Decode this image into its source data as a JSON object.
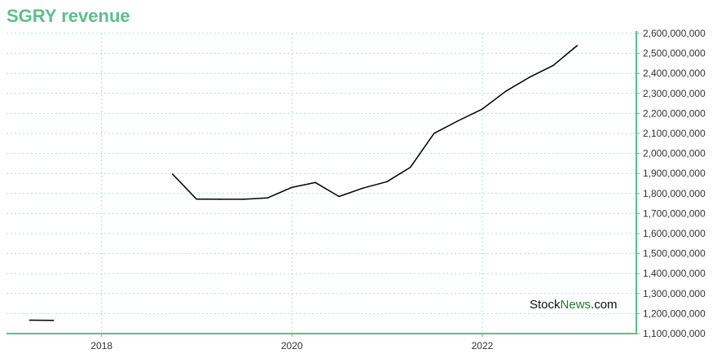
{
  "chart_data": {
    "type": "line",
    "title": "SGRY revenue",
    "xlabel": "",
    "ylabel": "",
    "x_ticks": [
      "2018",
      "2020",
      "2022"
    ],
    "y_ticks": [
      "1,100,000,000",
      "1,200,000,000",
      "1,300,000,000",
      "1,400,000,000",
      "1,500,000,000",
      "1,600,000,000",
      "1,700,000,000",
      "1,800,000,000",
      "1,900,000,000",
      "2,000,000,000",
      "2,100,000,000",
      "2,200,000,000",
      "2,300,000,000",
      "2,400,000,000",
      "2,500,000,000",
      "2,600,000,000"
    ],
    "ylim": [
      1100000000,
      2600000000
    ],
    "xlim": [
      "2017-01-01",
      "2023-08-15"
    ],
    "grid": true,
    "y_axis_side": "right",
    "series": [
      {
        "color": "#000000",
        "segments": [
          [
            {
              "x": "2017-03-31",
              "y": 1167000000
            },
            {
              "x": "2017-06-30",
              "y": 1166000000
            }
          ],
          [
            {
              "x": "2018-09-30",
              "y": 1897000000
            },
            {
              "x": "2018-12-31",
              "y": 1772000000
            },
            {
              "x": "2019-03-31",
              "y": 1771000000
            },
            {
              "x": "2019-06-30",
              "y": 1771000000
            },
            {
              "x": "2019-09-30",
              "y": 1778000000
            },
            {
              "x": "2019-12-31",
              "y": 1830000000
            },
            {
              "x": "2020-03-31",
              "y": 1855000000
            },
            {
              "x": "2020-06-30",
              "y": 1785000000
            },
            {
              "x": "2020-09-30",
              "y": 1827000000
            },
            {
              "x": "2020-12-31",
              "y": 1859000000
            },
            {
              "x": "2021-03-31",
              "y": 1931000000
            },
            {
              "x": "2021-06-30",
              "y": 2101000000
            },
            {
              "x": "2021-09-30",
              "y": 2163000000
            },
            {
              "x": "2021-12-31",
              "y": 2221000000
            },
            {
              "x": "2022-03-31",
              "y": 2310000000
            },
            {
              "x": "2022-06-30",
              "y": 2380000000
            },
            {
              "x": "2022-09-30",
              "y": 2440000000
            },
            {
              "x": "2022-12-31",
              "y": 2539000000
            }
          ]
        ]
      }
    ]
  },
  "watermark": {
    "part1": "Stock",
    "part2": "News",
    "part3": ".com"
  },
  "colors": {
    "title": "#5cbf8a",
    "axis": "#5cbf8a",
    "grid": "#b9dcc7",
    "line": "#000000",
    "watermark_dark": "#111111",
    "watermark_green": "#1a7f2e"
  }
}
